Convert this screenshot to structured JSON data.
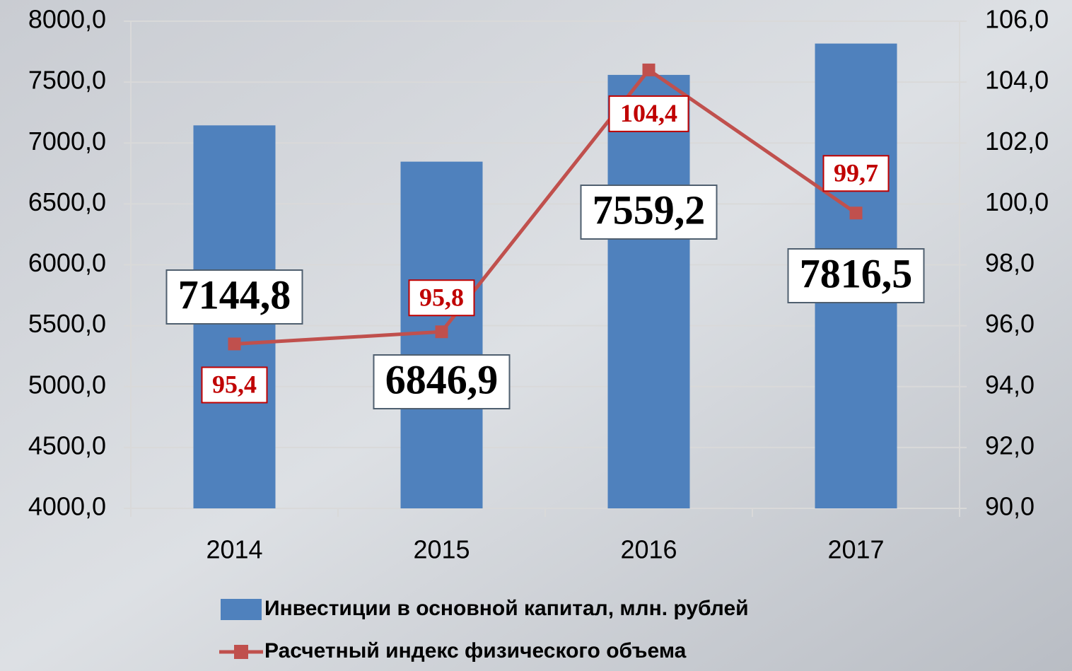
{
  "chart_data": {
    "type": "bar",
    "categories": [
      "2014",
      "2015",
      "2016",
      "2017"
    ],
    "series": [
      {
        "name": "Инвестиции в основной капитал, млн. рублей",
        "type": "bar",
        "color": "#4f81bd",
        "values": [
          7144.8,
          6846.9,
          7559.2,
          7816.5
        ],
        "value_labels": [
          "7144,8",
          "6846,9",
          "7559,2",
          "7816,5"
        ]
      },
      {
        "name": "Расчетный индекс физического объема",
        "type": "line",
        "axis": "y2",
        "color": "#c0504d",
        "values": [
          95.4,
          95.8,
          104.4,
          99.7
        ],
        "value_labels": [
          "95,4",
          "95,8",
          "104,4",
          "99,7"
        ]
      }
    ],
    "ylim": [
      4000,
      8000
    ],
    "yticks": [
      {
        "value": 4000,
        "label": "4000,0"
      },
      {
        "value": 4500,
        "label": "4500,0"
      },
      {
        "value": 5000,
        "label": "5000,0"
      },
      {
        "value": 5500,
        "label": "5500,0"
      },
      {
        "value": 6000,
        "label": "6000,0"
      },
      {
        "value": 6500,
        "label": "6500,0"
      },
      {
        "value": 7000,
        "label": "7000,0"
      },
      {
        "value": 7500,
        "label": "7500,0"
      },
      {
        "value": 8000,
        "label": "8000,0"
      }
    ],
    "y2lim": [
      90,
      106
    ],
    "y2ticks": [
      {
        "value": 90,
        "label": "90,0"
      },
      {
        "value": 92,
        "label": "92,0"
      },
      {
        "value": 94,
        "label": "94,0"
      },
      {
        "value": 96,
        "label": "96,0"
      },
      {
        "value": 98,
        "label": "98,0"
      },
      {
        "value": 100,
        "label": "100,0"
      },
      {
        "value": 102,
        "label": "102,0"
      },
      {
        "value": 104,
        "label": "104,0"
      },
      {
        "value": 106,
        "label": "106,0"
      }
    ],
    "grid": true,
    "legend": "bottom"
  }
}
